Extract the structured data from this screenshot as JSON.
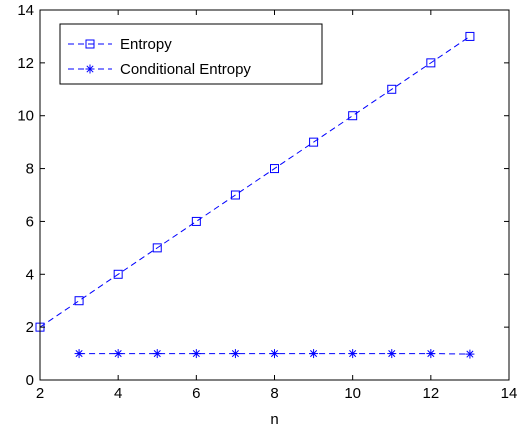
{
  "chart_data": {
    "type": "line",
    "title": "",
    "xlabel": "n",
    "ylabel": "",
    "xlim": [
      2,
      14
    ],
    "ylim": [
      0,
      14
    ],
    "xticks": [
      2,
      4,
      6,
      8,
      10,
      12,
      14
    ],
    "yticks": [
      0,
      2,
      4,
      6,
      8,
      10,
      12,
      14
    ],
    "grid": false,
    "legend_position": "top-left",
    "series": [
      {
        "name": "Entropy",
        "marker": "square",
        "line_style": "dashed",
        "color": "#0000ff",
        "x": [
          2,
          3,
          4,
          5,
          6,
          7,
          8,
          9,
          10,
          11,
          12,
          13
        ],
        "y": [
          2,
          3,
          4,
          5,
          6,
          7,
          8,
          9,
          10,
          11,
          12,
          13
        ]
      },
      {
        "name": "Conditional Entropy",
        "marker": "asterisk",
        "line_style": "dashed",
        "color": "#0000ff",
        "x": [
          3,
          4,
          5,
          6,
          7,
          8,
          9,
          10,
          11,
          12,
          13
        ],
        "y": [
          1,
          1,
          1,
          1,
          1,
          1,
          1,
          1,
          1,
          1,
          0.98
        ]
      }
    ]
  }
}
